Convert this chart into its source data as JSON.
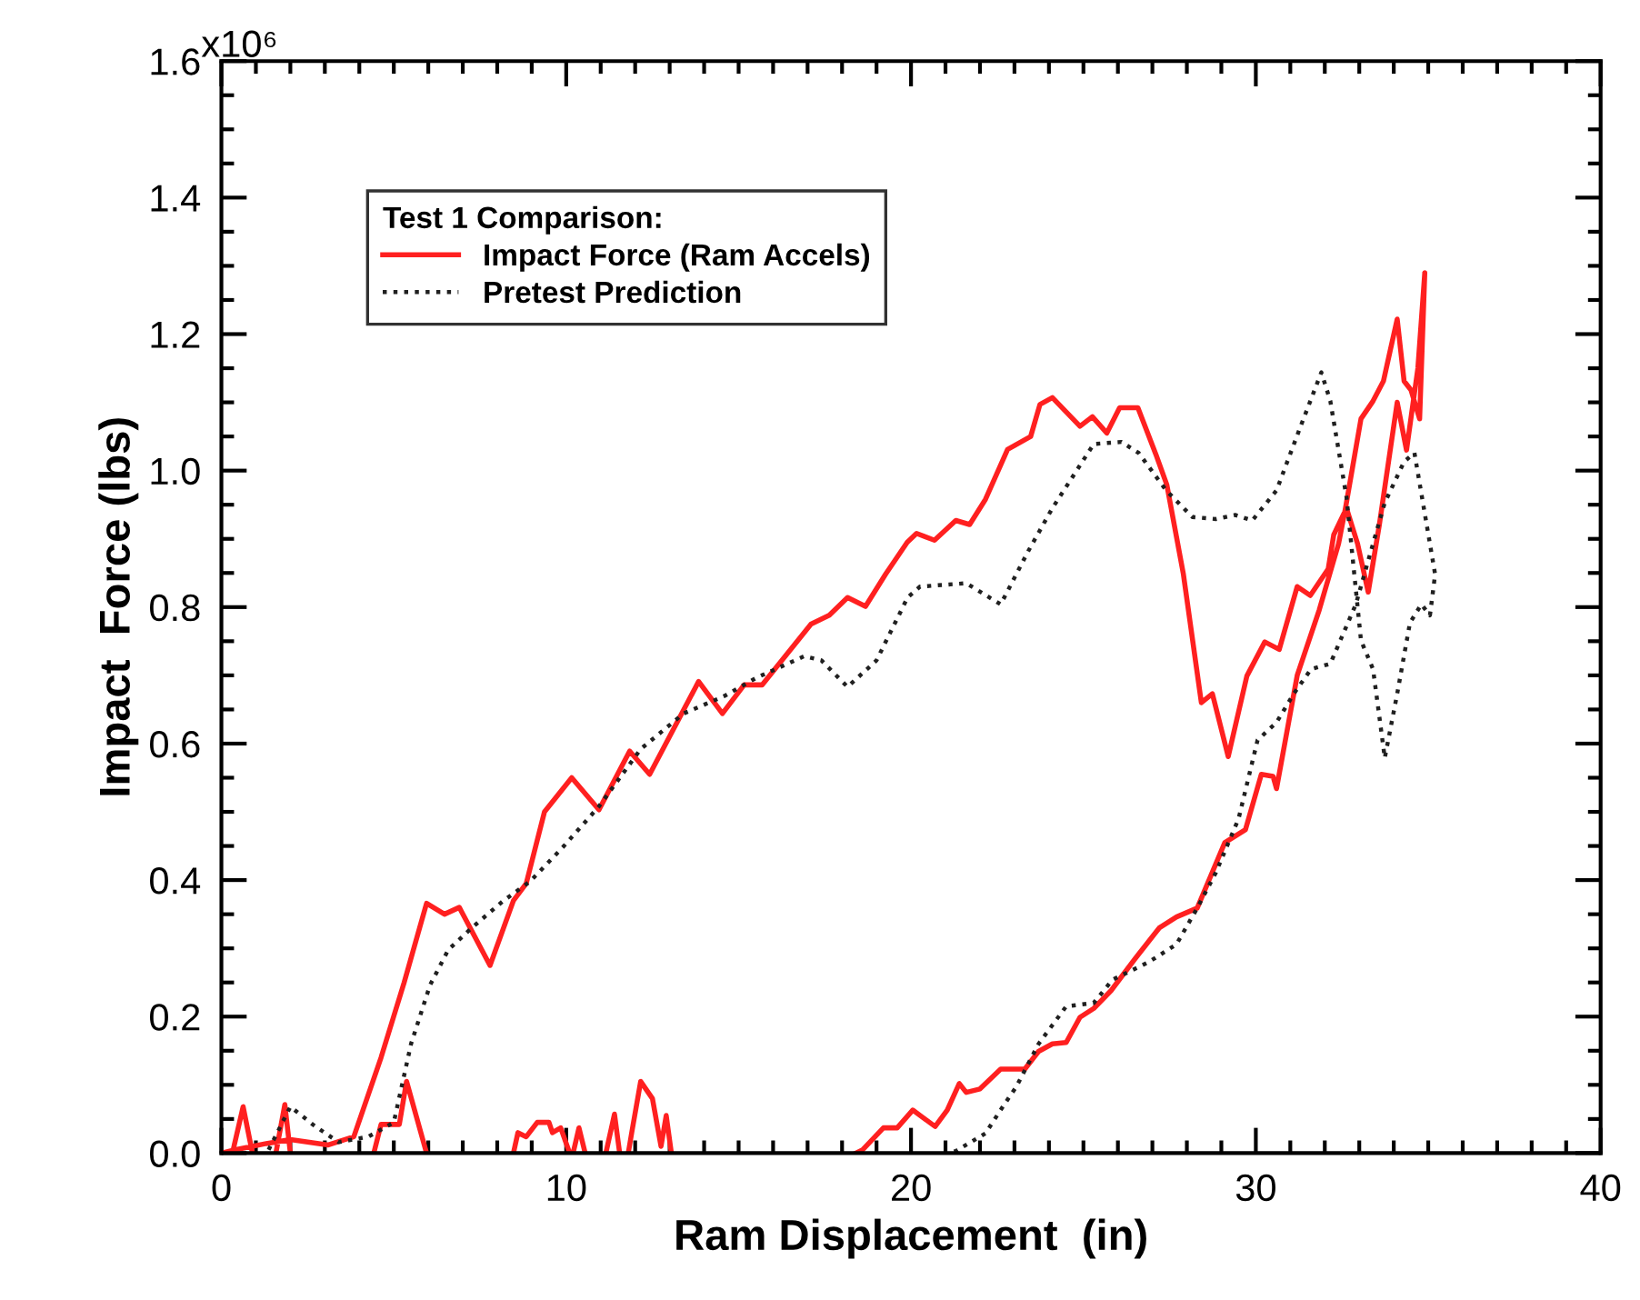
{
  "chart_data": {
    "type": "line",
    "xlabel": "Ram Displacement  (in)",
    "ylabel": "Impact  Force (lbs)",
    "legend_title": "Test 1 Comparison:",
    "legend": "top left",
    "grid": false,
    "xlim": [
      0,
      40
    ],
    "xticks": [
      0,
      10,
      20,
      30,
      40
    ],
    "ylim": [
      0,
      1.6
    ],
    "yticks": [
      {
        "value": 0,
        "label": "0.0"
      },
      0.2,
      0.4,
      0.6,
      0.8,
      {
        "value": 1.0,
        "label": "1.0"
      },
      1.2,
      1.4,
      1.6
    ],
    "annotations": [
      "x10⁶"
    ],
    "series": [
      {
        "name": "Impact Force (Ram Accels)",
        "color": "#ff2020",
        "line_style": "solid",
        "x": [
          0,
          0.5,
          1.3,
          2.0,
          3.1,
          3.84,
          4.63,
          5.3,
          5.95,
          6.47,
          6.9,
          7.79,
          8.47,
          8.84,
          9.37,
          10.16,
          10.95,
          11.84,
          12.42,
          13.84,
          14.53,
          15.16,
          15.68,
          17.1,
          17.63,
          18.16,
          18.68,
          19.26,
          19.89,
          20.16,
          20.68,
          21.3,
          21.7,
          22.16,
          22.8,
          23.47,
          23.74,
          24.1,
          24.9,
          25.26,
          25.68,
          26.05,
          26.58,
          27.1,
          27.42,
          27.9,
          28.42,
          28.74,
          29.2,
          29.74,
          30.26,
          30.68,
          31.2,
          31.58,
          32.1,
          32.26,
          32.63,
          32.95,
          33.26,
          33.58,
          34.1,
          34.37,
          34.7,
          34.9,
          34.75,
          34.5,
          34.3,
          34.1,
          33.7,
          33.4,
          33.05,
          32.6,
          32.4,
          31.84,
          31.2,
          30.6,
          30.5,
          30.16,
          29.7,
          29.1,
          28.3,
          27.7,
          27.2,
          26.5,
          25.8,
          25.3,
          24.9,
          24.5,
          24.1,
          23.7,
          23.3,
          22.6,
          22.0,
          21.6,
          21.4,
          21.05,
          20.7,
          20.05,
          19.6,
          19.2,
          18.6,
          18.4,
          15.0,
          13.05,
          12.9,
          12.75,
          12.5,
          12.16,
          11.9,
          11.8,
          11.7,
          11.55,
          11.4,
          11.15,
          10.9,
          10.55,
          10.37,
          10.2,
          10.15,
          10.1,
          9.84,
          9.6,
          9.5,
          9.16,
          8.84,
          8.6,
          8.47,
          7.0,
          5.95,
          5.37,
          5.16,
          4.63,
          4.42,
          3.0,
          2.0,
          1.84,
          1.58,
          1.2,
          0.9,
          0.63,
          0.32
        ],
        "values": [
          0,
          0.006,
          0.014,
          0.02,
          0.012,
          0.024,
          0.14,
          0.25,
          0.366,
          0.35,
          0.36,
          0.275,
          0.37,
          0.395,
          0.5,
          0.55,
          0.503,
          0.589,
          0.555,
          0.691,
          0.644,
          0.686,
          0.686,
          0.775,
          0.788,
          0.814,
          0.801,
          0.848,
          0.895,
          0.908,
          0.898,
          0.927,
          0.921,
          0.958,
          1.031,
          1.05,
          1.097,
          1.107,
          1.065,
          1.079,
          1.055,
          1.092,
          1.092,
          1.024,
          0.979,
          0.848,
          0.66,
          0.673,
          0.581,
          0.699,
          0.749,
          0.738,
          0.83,
          0.817,
          0.856,
          0.906,
          0.945,
          0.893,
          0.822,
          0.92,
          1.1,
          1.03,
          1.15,
          1.29,
          1.076,
          1.118,
          1.131,
          1.222,
          1.131,
          1.102,
          1.076,
          0.945,
          0.893,
          0.796,
          0.7,
          0.534,
          0.552,
          0.555,
          0.474,
          0.455,
          0.359,
          0.346,
          0.33,
          0.285,
          0.238,
          0.212,
          0.199,
          0.162,
          0.16,
          0.149,
          0.123,
          0.123,
          0.094,
          0.089,
          0.102,
          0.063,
          0.039,
          0.063,
          0.037,
          0.037,
          0.005,
          0,
          null,
          0,
          0.055,
          0.01,
          0.08,
          0.105,
          0.03,
          0,
          null,
          0,
          0.057,
          0,
          null,
          0,
          0.037,
          0,
          null,
          0,
          0.037,
          0.03,
          0.045,
          0.045,
          0.024,
          0.03,
          0,
          null,
          0,
          0.105,
          0.042,
          0.042,
          0,
          null,
          0,
          0.071,
          0,
          null,
          0,
          0.068,
          0
        ]
      },
      {
        "name": "Pretest Prediction",
        "color": "#202020",
        "line_style": "dotted",
        "x": [
          1.37,
          2.0,
          2.7,
          3.4,
          4.26,
          5.0,
          5.5,
          6.05,
          6.58,
          7.26,
          8.16,
          8.95,
          9.9,
          10.95,
          12.16,
          13.4,
          14.6,
          15.5,
          16.9,
          17.4,
          18.16,
          19.0,
          19.9,
          20.26,
          21.6,
          22.6,
          23.4,
          24.1,
          25.3,
          26.1,
          26.6,
          27.4,
          28.16,
          28.84,
          29.4,
          29.9,
          30.6,
          31.3,
          31.9,
          32.16,
          32.63,
          33.05,
          33.4,
          33.74,
          34.1,
          34.47,
          34.8,
          35.05,
          35.2,
          34.6,
          34.3,
          33.74,
          33.4,
          32.9,
          32.16,
          31.6,
          31.1,
          30.6,
          30.05,
          29.5,
          28.84,
          28.3,
          27.7,
          26.9,
          25.84,
          25.3,
          24.5,
          23.7,
          23.05,
          22.7,
          22.16,
          21.3,
          21.1
        ],
        "values": [
          0.005,
          0.068,
          0.04,
          0.016,
          0.024,
          0.045,
          0.16,
          0.246,
          0.298,
          0.33,
          0.369,
          0.398,
          0.448,
          0.508,
          0.592,
          0.644,
          0.67,
          0.696,
          0.728,
          0.722,
          0.683,
          0.722,
          0.814,
          0.83,
          0.835,
          0.804,
          0.882,
          0.945,
          1.039,
          1.042,
          1.026,
          0.971,
          0.932,
          0.929,
          0.935,
          0.927,
          0.971,
          1.065,
          1.144,
          1.102,
          0.961,
          0.751,
          0.709,
          0.579,
          0.673,
          0.777,
          0.804,
          0.788,
          0.848,
          1.026,
          1.013,
          0.953,
          0.893,
          0.804,
          0.717,
          0.709,
          0.673,
          0.631,
          0.605,
          0.49,
          0.411,
          0.359,
          0.306,
          0.28,
          0.254,
          0.22,
          0.215,
          0.16,
          0.097,
          0.071,
          0.029,
          0.003,
          0
        ]
      }
    ]
  }
}
